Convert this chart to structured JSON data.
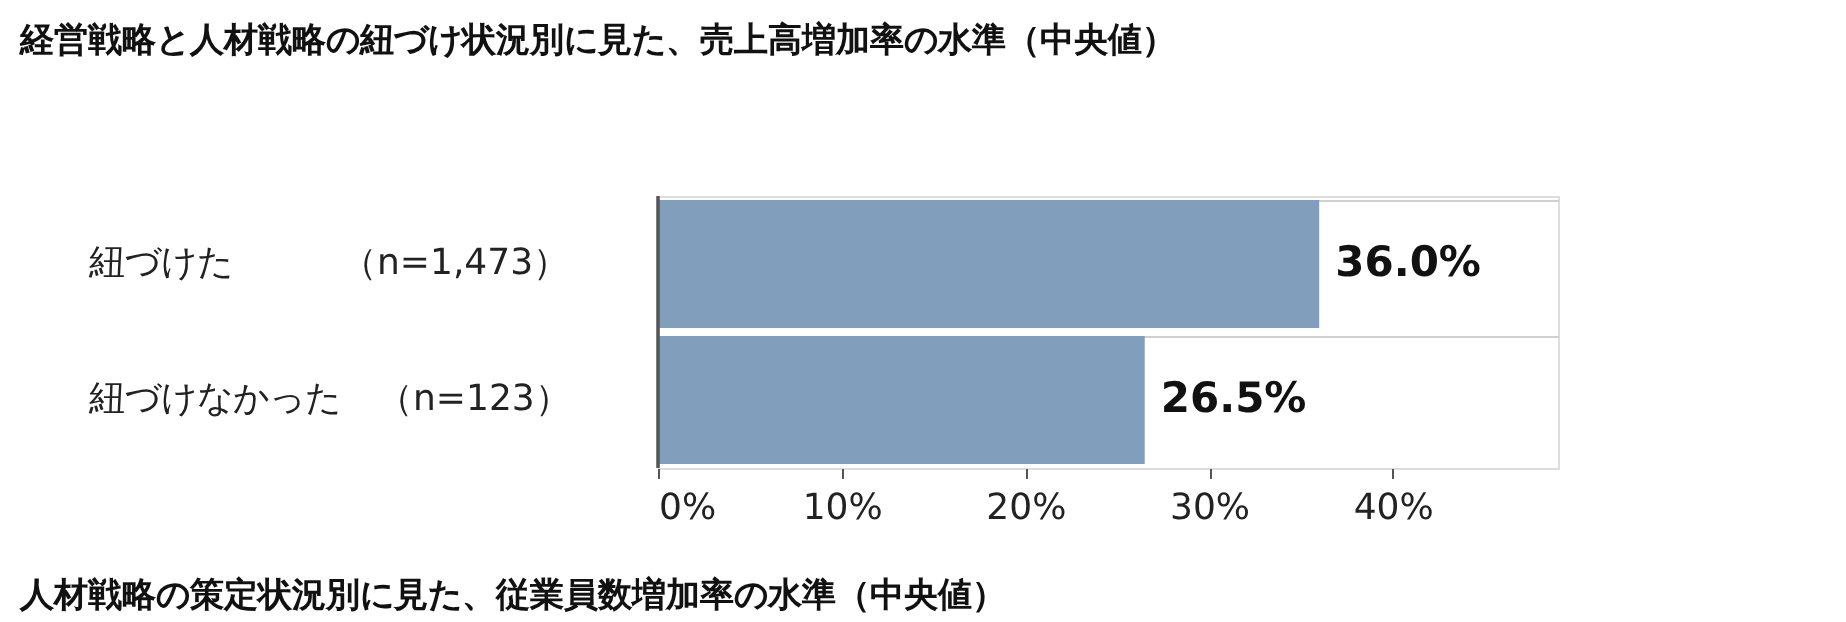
{
  "chart_data": {
    "type": "bar",
    "orientation": "horizontal",
    "title": "経営戦略と人材戦略の紐づけ状況別に見た、売上高増加率の水準（中央値）",
    "categories": [
      "紐づけた　　　（n=1,473）",
      "紐づけなかった　（n=123）"
    ],
    "values": [
      36.0,
      26.5
    ],
    "value_labels": [
      "36.0%",
      "26.5%"
    ],
    "color": "#819fbd",
    "xlim": [
      0,
      49
    ],
    "xticks": [
      {
        "value": 0,
        "label": "0%"
      },
      {
        "value": 10,
        "label": "10%"
      },
      {
        "value": 20,
        "label": "20%"
      },
      {
        "value": 30,
        "label": "30%"
      },
      {
        "value": 40,
        "label": "40%"
      }
    ],
    "grid": "y",
    "annotations": [
      "人材戦略の策定状況別に見た、従業員数増加率の水準（中央値）"
    ]
  }
}
